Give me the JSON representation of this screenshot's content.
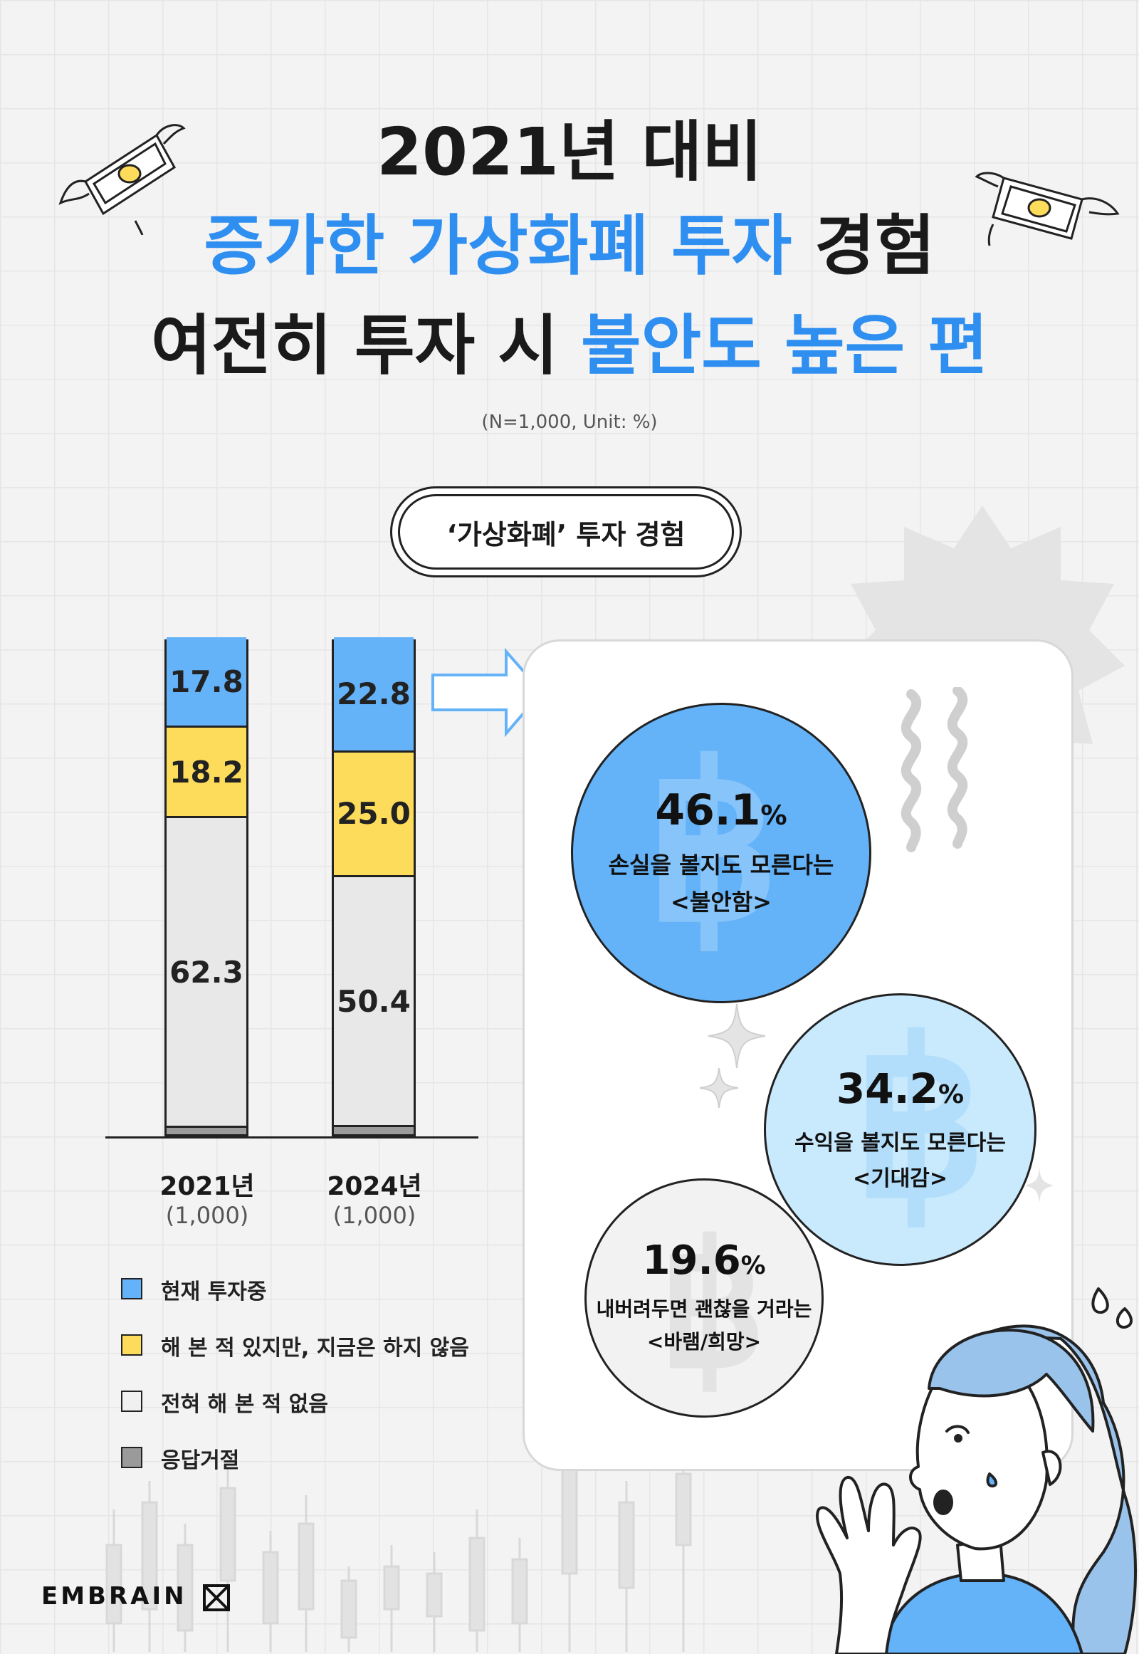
{
  "title": {
    "line1": "2021년 대비",
    "line2_highlight": "증가한 가상화폐 투자",
    "line2_rest": "경험",
    "line3_rest": "여전히 투자 시",
    "line3_highlight": "불안도 높은 편"
  },
  "subtitle": "(N=1,000, Unit: %)",
  "section_pill": "‘가상화폐’ 투자 경험",
  "colors": {
    "current": "#64b2f8",
    "past": "#fddc5c",
    "never": "#e8e8e8",
    "refused": "#9a9a9a",
    "circle1": "#64b2f8",
    "circle2": "#c9e9fd",
    "circle3": "#f2f2f2",
    "accent": "#2f8ff0"
  },
  "chart_data": {
    "type": "bar",
    "stacked": true,
    "categories": [
      "2021년",
      "2024년"
    ],
    "category_sub": [
      "(1,000)",
      "(1,000)"
    ],
    "series": [
      {
        "name": "응답거절",
        "values": [
          1.7,
          1.8
        ]
      },
      {
        "name": "전혀 해 본 적 없음",
        "values": [
          62.3,
          50.4
        ]
      },
      {
        "name": "해 본 적 있지만, 지금은 하지 않음",
        "values": [
          18.2,
          25.0
        ]
      },
      {
        "name": "현재 투자중",
        "values": [
          17.8,
          22.8
        ]
      }
    ],
    "value_labels": [
      [
        "1.7",
        "62.3",
        "18.2",
        "17.8"
      ],
      [
        "1.8",
        "50.4",
        "25.0",
        "22.8"
      ]
    ],
    "ylim": [
      0,
      100
    ],
    "legend": [
      {
        "label": "현재 투자중",
        "color": "#64b2f8"
      },
      {
        "label": "해 본 적 있지만, 지금은 하지 않음",
        "color": "#fddc5c"
      },
      {
        "label": "전혀 해 본 적 없음",
        "color": "#f0f0f0"
      },
      {
        "label": "응답거절",
        "color": "#9a9a9a"
      }
    ],
    "legend_position": "bottom-left"
  },
  "sentiments": [
    {
      "value": "46.1",
      "unit": "%",
      "line1": "손실을 볼지도 모른다는",
      "line2": "<불안함>"
    },
    {
      "value": "34.2",
      "unit": "%",
      "line1": "수익을 볼지도 모른다는",
      "line2": "<기대감>"
    },
    {
      "value": "19.6",
      "unit": "%",
      "line1": "내버려두면 괜찮을 거라는",
      "line2": "<바램/희망>"
    }
  ],
  "brand": "EMBRAIN"
}
